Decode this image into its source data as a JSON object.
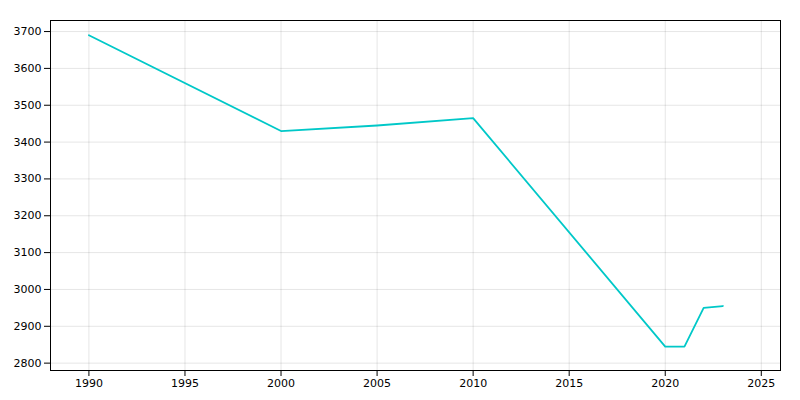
{
  "chart_data": {
    "type": "line",
    "x": [
      1990,
      2000,
      2005,
      2010,
      2020,
      2021,
      2022,
      2023
    ],
    "values": [
      3690,
      3430,
      3445,
      3465,
      2845,
      2845,
      2950,
      2955
    ],
    "color": "#00C8C8",
    "xlim": [
      1988,
      2026
    ],
    "ylim": [
      2780,
      3730
    ],
    "xticks": [
      1990,
      1995,
      2000,
      2005,
      2010,
      2015,
      2020,
      2025
    ],
    "yticks": [
      2800,
      2900,
      3000,
      3100,
      3200,
      3300,
      3400,
      3500,
      3600,
      3700
    ],
    "grid": true
  }
}
